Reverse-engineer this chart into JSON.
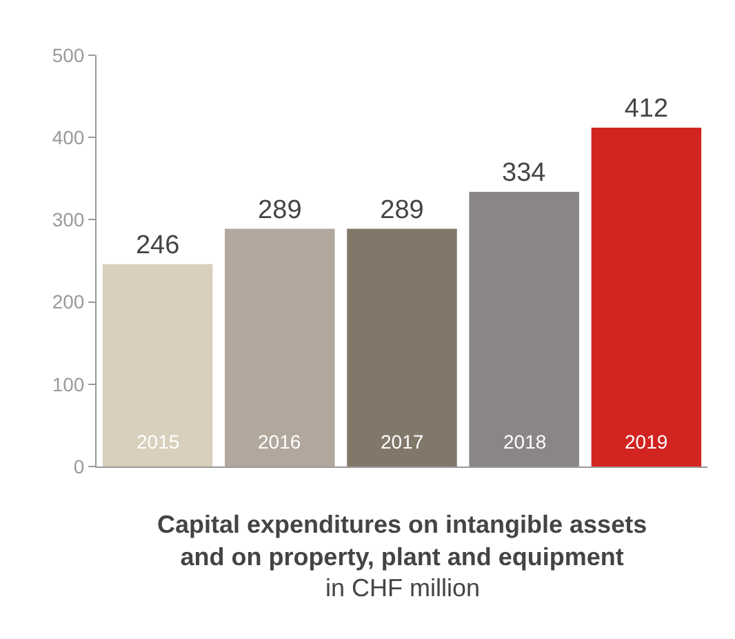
{
  "chart_data": {
    "type": "bar",
    "title": "Capital expenditures on intangible assets and on property, plant and equipment",
    "subtitle": "in CHF million",
    "categories": [
      "2015",
      "2016",
      "2017",
      "2018",
      "2019"
    ],
    "values": [
      246,
      289,
      289,
      334,
      412
    ],
    "colors": [
      "#d8cfbd",
      "#b1a79c",
      "#82786a",
      "#8a8587",
      "#d22421"
    ],
    "ylim": [
      0,
      500
    ],
    "yticks": [
      0,
      100,
      200,
      300,
      400,
      500
    ],
    "grid": false,
    "data_labels": true
  }
}
